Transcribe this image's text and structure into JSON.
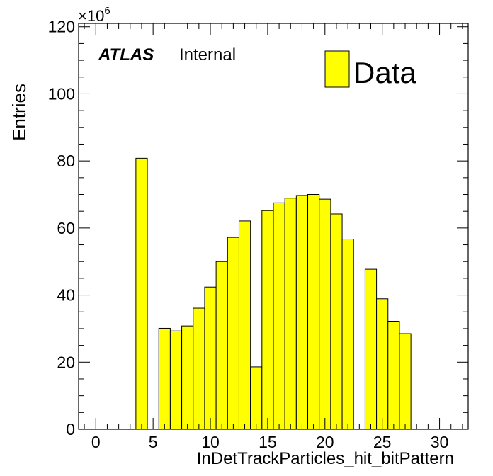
{
  "chart_data": {
    "type": "bar",
    "xlabel": "InDetTrackParticles_hit_bitPattern",
    "ylabel": "Entries",
    "y_multiplier_label": "×10",
    "y_multiplier_exponent": "6",
    "xlim": [
      -1.5,
      32.5
    ],
    "ylim": [
      0,
      121
    ],
    "xticks": [
      0,
      5,
      10,
      15,
      20,
      25,
      30
    ],
    "yticks": [
      0,
      20,
      40,
      60,
      80,
      100,
      120
    ],
    "bin_width": 1,
    "bin_lows": [
      3.5,
      5.5,
      6.5,
      7.5,
      8.5,
      9.5,
      10.5,
      11.5,
      12.5,
      13.5,
      14.5,
      15.5,
      16.5,
      17.5,
      18.5,
      19.5,
      20.5,
      21.5,
      23.5,
      24.5,
      25.5,
      26.5
    ],
    "values": [
      80.8,
      30.1,
      29.3,
      30.8,
      36.1,
      42.4,
      50.0,
      57.2,
      62.1,
      18.6,
      65.2,
      67.5,
      68.9,
      69.7,
      70.0,
      68.6,
      64.2,
      56.7,
      47.7,
      38.9,
      32.2,
      28.5
    ],
    "series": [
      {
        "name": "Data",
        "color": "#ffff00"
      }
    ],
    "legend_position": "top-right",
    "grid": false,
    "annotation": {
      "bold": "ATLAS",
      "normal": "Internal"
    }
  }
}
